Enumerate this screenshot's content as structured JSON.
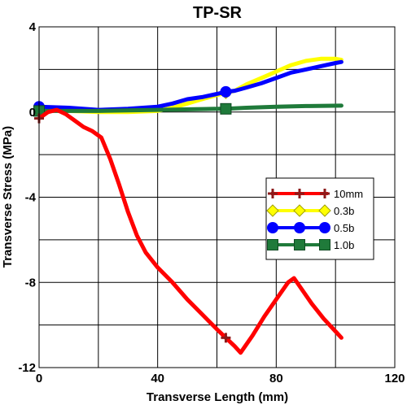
{
  "chart_data": {
    "type": "line",
    "title": "TP-SR",
    "xlabel": "Transverse Length (mm)",
    "ylabel": "Transverse Stress (MPa)",
    "xlim": [
      0,
      120
    ],
    "ylim": [
      -12,
      4
    ],
    "xticks": [
      0,
      40,
      80,
      120
    ],
    "yticks": [
      4,
      0,
      -4,
      -8,
      -12
    ],
    "xtick_labels": [
      "0",
      "40",
      "80",
      "120"
    ],
    "ytick_labels": [
      "4",
      "0",
      "-4",
      "-8",
      "-12"
    ],
    "grid": true,
    "legend_position": "middle-right",
    "series": [
      {
        "name": "10mm",
        "color": "#ff0000",
        "marker": "plus",
        "marker_color": "#8b1a1a",
        "x": [
          0,
          3,
          6,
          9,
          12,
          15,
          18,
          21,
          24,
          27,
          30,
          33,
          36,
          40,
          45,
          50,
          55,
          60,
          63,
          66,
          68,
          72,
          76,
          80,
          84,
          86,
          88,
          92,
          96,
          100,
          102
        ],
        "y": [
          -0.3,
          0,
          0.1,
          -0.1,
          -0.4,
          -0.7,
          -0.9,
          -1.2,
          -2.2,
          -3.4,
          -4.7,
          -5.8,
          -6.6,
          -7.3,
          -8.0,
          -8.8,
          -9.5,
          -10.2,
          -10.6,
          -11.0,
          -11.3,
          -10.5,
          -9.6,
          -8.8,
          -8.0,
          -7.8,
          -8.2,
          -9.0,
          -9.7,
          -10.3,
          -10.6
        ],
        "marker_x": [
          0,
          63
        ],
        "marker_y": [
          -0.3,
          -10.6
        ]
      },
      {
        "name": "0.3b",
        "color": "#ffff00",
        "marker": "diamond",
        "marker_color": "#ffff00",
        "x": [
          0,
          10,
          20,
          30,
          40,
          45,
          50,
          55,
          60,
          63,
          66,
          70,
          75,
          80,
          85,
          90,
          95,
          100,
          102
        ],
        "y": [
          0.1,
          0.05,
          0.0,
          0.0,
          0.05,
          0.2,
          0.4,
          0.6,
          0.8,
          0.9,
          1.0,
          1.3,
          1.6,
          1.9,
          2.2,
          2.4,
          2.5,
          2.5,
          2.45
        ],
        "marker_x": [
          0,
          63
        ],
        "marker_y": [
          0.1,
          0.9
        ]
      },
      {
        "name": "0.5b",
        "color": "#0000ff",
        "marker": "circle",
        "marker_color": "#0000ff",
        "x": [
          0,
          10,
          20,
          30,
          40,
          45,
          50,
          55,
          60,
          63,
          66,
          70,
          75,
          80,
          85,
          90,
          95,
          100,
          102
        ],
        "y": [
          0.25,
          0.2,
          0.1,
          0.15,
          0.25,
          0.4,
          0.6,
          0.7,
          0.85,
          0.95,
          1.0,
          1.15,
          1.35,
          1.6,
          1.85,
          2.0,
          2.15,
          2.3,
          2.35
        ],
        "marker_x": [
          0,
          63
        ],
        "marker_y": [
          0.25,
          0.95
        ]
      },
      {
        "name": "1.0b",
        "color": "#1f7a3a",
        "marker": "square",
        "marker_color": "#1f7a3a",
        "x": [
          0,
          20,
          40,
          60,
          63,
          70,
          80,
          90,
          102
        ],
        "y": [
          0.05,
          0.05,
          0.1,
          0.15,
          0.15,
          0.2,
          0.25,
          0.28,
          0.3
        ],
        "marker_x": [
          0,
          63
        ],
        "marker_y": [
          0.05,
          0.15
        ]
      }
    ]
  }
}
